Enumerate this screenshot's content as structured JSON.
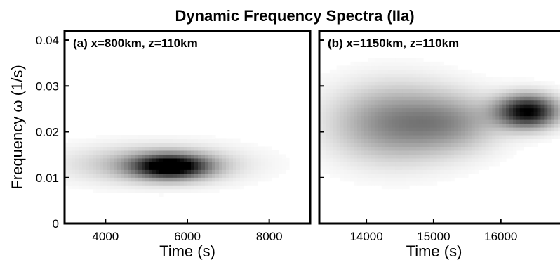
{
  "figure": {
    "title": "Dynamic Frequency Spectra (IIa)"
  },
  "chart_data": [
    {
      "type": "heatmap",
      "panel_label": "(a) x=800km, z=110km",
      "xlabel": "Time (s)",
      "ylabel": "Frequency ω (1/s)",
      "xlim": [
        3000,
        9000
      ],
      "ylim": [
        0,
        0.042
      ],
      "xticks": [
        4000,
        6000,
        8000
      ],
      "xtick_labels": [
        "4000",
        "6000",
        "8000"
      ],
      "yticks": [
        0,
        0.01,
        0.02,
        0.03,
        0.04
      ],
      "ytick_labels": [
        "0",
        "0.01",
        "0.02",
        "0.03",
        "0.04"
      ],
      "colormap": "white-to-black (grayscale)",
      "features": [
        {
          "shape": "gaussian",
          "t_center": 5600,
          "f_center": 0.0125,
          "t_width": 900,
          "f_width": 0.0025,
          "intensity": 1.0
        },
        {
          "shape": "gaussian",
          "t_center": 5200,
          "f_center": 0.013,
          "t_width": 2000,
          "f_width": 0.004,
          "intensity": 0.3
        }
      ]
    },
    {
      "type": "heatmap",
      "panel_label": "(b) x=1150km, z=110km",
      "xlabel": "Time (s)",
      "ylabel": "",
      "xlim": [
        13300,
        16900
      ],
      "ylim": [
        0,
        0.042
      ],
      "xticks": [
        14000,
        15000,
        16000
      ],
      "xtick_labels": [
        "14000",
        "15000",
        "16000"
      ],
      "yticks": [
        0,
        0.01,
        0.02,
        0.03,
        0.04
      ],
      "ytick_labels": [],
      "colormap": "white-to-black (grayscale)",
      "features": [
        {
          "shape": "gaussian",
          "t_center": 14400,
          "f_center": 0.022,
          "t_width": 900,
          "f_width": 0.008,
          "intensity": 0.45
        },
        {
          "shape": "gaussian",
          "t_center": 16400,
          "f_center": 0.0245,
          "t_width": 450,
          "f_width": 0.0035,
          "intensity": 1.0
        },
        {
          "shape": "gaussian",
          "t_center": 15300,
          "f_center": 0.022,
          "t_width": 700,
          "f_width": 0.006,
          "intensity": 0.3
        }
      ]
    }
  ]
}
